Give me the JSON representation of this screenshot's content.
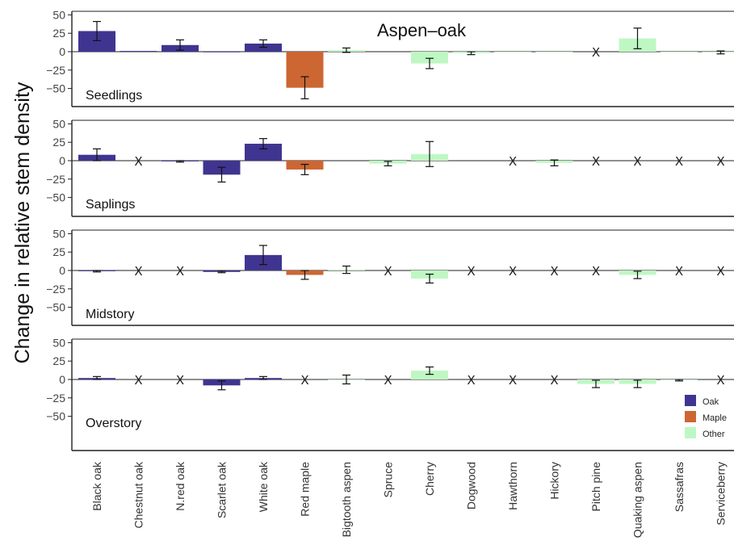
{
  "chart_data": {
    "type": "bar",
    "title": "Aspen–oak",
    "ylabel": "Change in relative stem density",
    "xlabel": "",
    "ylim": [
      -70,
      55
    ],
    "yticks": [
      50,
      25,
      0,
      -25,
      -50
    ],
    "tick_labels": [
      "50",
      "25",
      "0",
      "−25",
      "−50"
    ],
    "missing_marker": "X",
    "grid": false,
    "legend_position": "bottom-right",
    "categories": [
      "Black oak",
      "Chestnut oak",
      "N.red oak",
      "Scarlet oak",
      "White oak",
      "Red maple",
      "Bigtooth aspen",
      "Spruce",
      "Cherry",
      "Dogwood",
      "Hawthorn",
      "Hickory",
      "Pitch pine",
      "Quaking aspen",
      "Sassafras",
      "Serviceberry"
    ],
    "groups": [
      "Oak",
      "Oak",
      "Oak",
      "Oak",
      "Oak",
      "Maple",
      "Other",
      "Other",
      "Other",
      "Other",
      "Other",
      "Other",
      "Other",
      "Other",
      "Other",
      "Other"
    ],
    "legend": [
      {
        "name": "Oak",
        "color": "#3f3590"
      },
      {
        "name": "Maple",
        "color": "#cc6633"
      },
      {
        "name": "Other",
        "color": "#bff7c4"
      }
    ],
    "colors": {
      "Oak": "#3f3590",
      "Maple": "#cc6633",
      "Other": "#bff7c4"
    },
    "panels": [
      {
        "name": "Seedlings",
        "values": [
          28,
          1,
          9,
          0,
          11,
          -49,
          2,
          null,
          -16,
          -2,
          0,
          0,
          0,
          18,
          0,
          -1
        ],
        "errors": [
          13,
          0,
          7,
          0,
          5,
          15,
          3,
          null,
          7,
          2,
          0,
          0,
          0,
          14,
          0,
          2
        ],
        "missing": [
          false,
          false,
          false,
          false,
          false,
          false,
          false,
          false,
          false,
          false,
          false,
          false,
          true,
          false,
          false,
          false
        ]
      },
      {
        "name": "Saplings",
        "values": [
          8,
          null,
          -1,
          -19,
          23,
          -12,
          null,
          -4,
          9,
          null,
          null,
          -3,
          null,
          null,
          null,
          null
        ],
        "errors": [
          8,
          null,
          1,
          10,
          7,
          7,
          null,
          3,
          17,
          null,
          null,
          4,
          null,
          null,
          null,
          null
        ],
        "missing": [
          false,
          true,
          false,
          false,
          false,
          false,
          false,
          false,
          false,
          false,
          true,
          false,
          true,
          true,
          true,
          true
        ]
      },
      {
        "name": "Midstory",
        "values": [
          -1,
          null,
          null,
          -2,
          21,
          -6,
          1,
          null,
          -11,
          null,
          null,
          null,
          null,
          -6,
          null,
          null
        ],
        "errors": [
          1,
          null,
          null,
          1,
          13,
          6,
          5,
          null,
          6,
          null,
          null,
          null,
          null,
          5,
          null,
          null
        ],
        "missing": [
          false,
          true,
          true,
          false,
          false,
          false,
          false,
          true,
          false,
          true,
          true,
          true,
          true,
          false,
          true,
          true
        ]
      },
      {
        "name": "Overstory",
        "values": [
          2,
          null,
          null,
          -8,
          2,
          null,
          0,
          null,
          12,
          null,
          null,
          null,
          -6,
          -6,
          -1,
          null
        ],
        "errors": [
          2,
          null,
          null,
          6,
          2,
          null,
          6,
          null,
          5,
          null,
          null,
          null,
          5,
          5,
          1,
          null
        ],
        "missing": [
          false,
          true,
          true,
          false,
          false,
          true,
          false,
          true,
          false,
          true,
          true,
          true,
          false,
          false,
          false,
          true
        ]
      }
    ]
  }
}
